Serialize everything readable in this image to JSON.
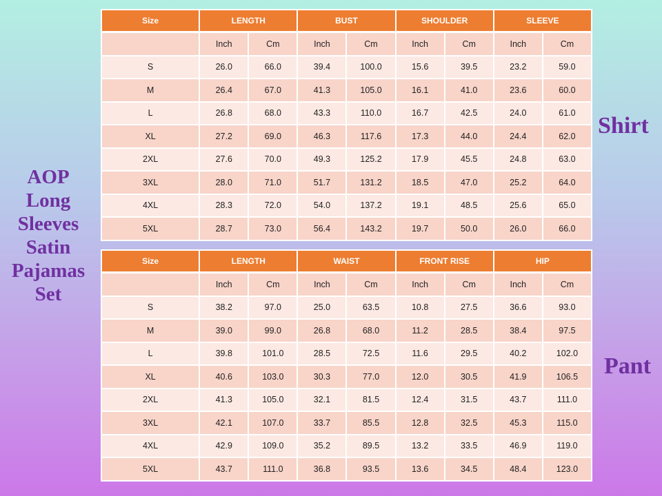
{
  "title_lines": [
    "AOP",
    "Long",
    "Sleeves",
    "Satin",
    "Pajamas",
    "Set"
  ],
  "shirt_label": "Shirt",
  "pant_label": "Pant",
  "colors": {
    "header": "#ed7d31",
    "row_dark": "#f8d4c9",
    "row_light": "#fce9e3",
    "title": "#7030a0"
  },
  "shirt_table": {
    "size_header": "Size",
    "groups": [
      "LENGTH",
      "BUST",
      "SHOULDER",
      "SLEEVE"
    ],
    "units": [
      "Inch",
      "Cm"
    ],
    "rows": [
      [
        "S",
        "26.0",
        "66.0",
        "39.4",
        "100.0",
        "15.6",
        "39.5",
        "23.2",
        "59.0"
      ],
      [
        "M",
        "26.4",
        "67.0",
        "41.3",
        "105.0",
        "16.1",
        "41.0",
        "23.6",
        "60.0"
      ],
      [
        "L",
        "26.8",
        "68.0",
        "43.3",
        "110.0",
        "16.7",
        "42.5",
        "24.0",
        "61.0"
      ],
      [
        "XL",
        "27.2",
        "69.0",
        "46.3",
        "117.6",
        "17.3",
        "44.0",
        "24.4",
        "62.0"
      ],
      [
        "2XL",
        "27.6",
        "70.0",
        "49.3",
        "125.2",
        "17.9",
        "45.5",
        "24.8",
        "63.0"
      ],
      [
        "3XL",
        "28.0",
        "71.0",
        "51.7",
        "131.2",
        "18.5",
        "47.0",
        "25.2",
        "64.0"
      ],
      [
        "4XL",
        "28.3",
        "72.0",
        "54.0",
        "137.2",
        "19.1",
        "48.5",
        "25.6",
        "65.0"
      ],
      [
        "5XL",
        "28.7",
        "73.0",
        "56.4",
        "143.2",
        "19.7",
        "50.0",
        "26.0",
        "66.0"
      ]
    ]
  },
  "pant_table": {
    "size_header": "Size",
    "groups": [
      "LENGTH",
      "WAIST",
      "FRONT RISE",
      "HIP"
    ],
    "units": [
      "Inch",
      "Cm"
    ],
    "rows": [
      [
        "S",
        "38.2",
        "97.0",
        "25.0",
        "63.5",
        "10.8",
        "27.5",
        "36.6",
        "93.0"
      ],
      [
        "M",
        "39.0",
        "99.0",
        "26.8",
        "68.0",
        "11.2",
        "28.5",
        "38.4",
        "97.5"
      ],
      [
        "L",
        "39.8",
        "101.0",
        "28.5",
        "72.5",
        "11.6",
        "29.5",
        "40.2",
        "102.0"
      ],
      [
        "XL",
        "40.6",
        "103.0",
        "30.3",
        "77.0",
        "12.0",
        "30.5",
        "41.9",
        "106.5"
      ],
      [
        "2XL",
        "41.3",
        "105.0",
        "32.1",
        "81.5",
        "12.4",
        "31.5",
        "43.7",
        "111.0"
      ],
      [
        "3XL",
        "42.1",
        "107.0",
        "33.7",
        "85.5",
        "12.8",
        "32.5",
        "45.3",
        "115.0"
      ],
      [
        "4XL",
        "42.9",
        "109.0",
        "35.2",
        "89.5",
        "13.2",
        "33.5",
        "46.9",
        "119.0"
      ],
      [
        "5XL",
        "43.7",
        "111.0",
        "36.8",
        "93.5",
        "13.6",
        "34.5",
        "48.4",
        "123.0"
      ]
    ]
  }
}
